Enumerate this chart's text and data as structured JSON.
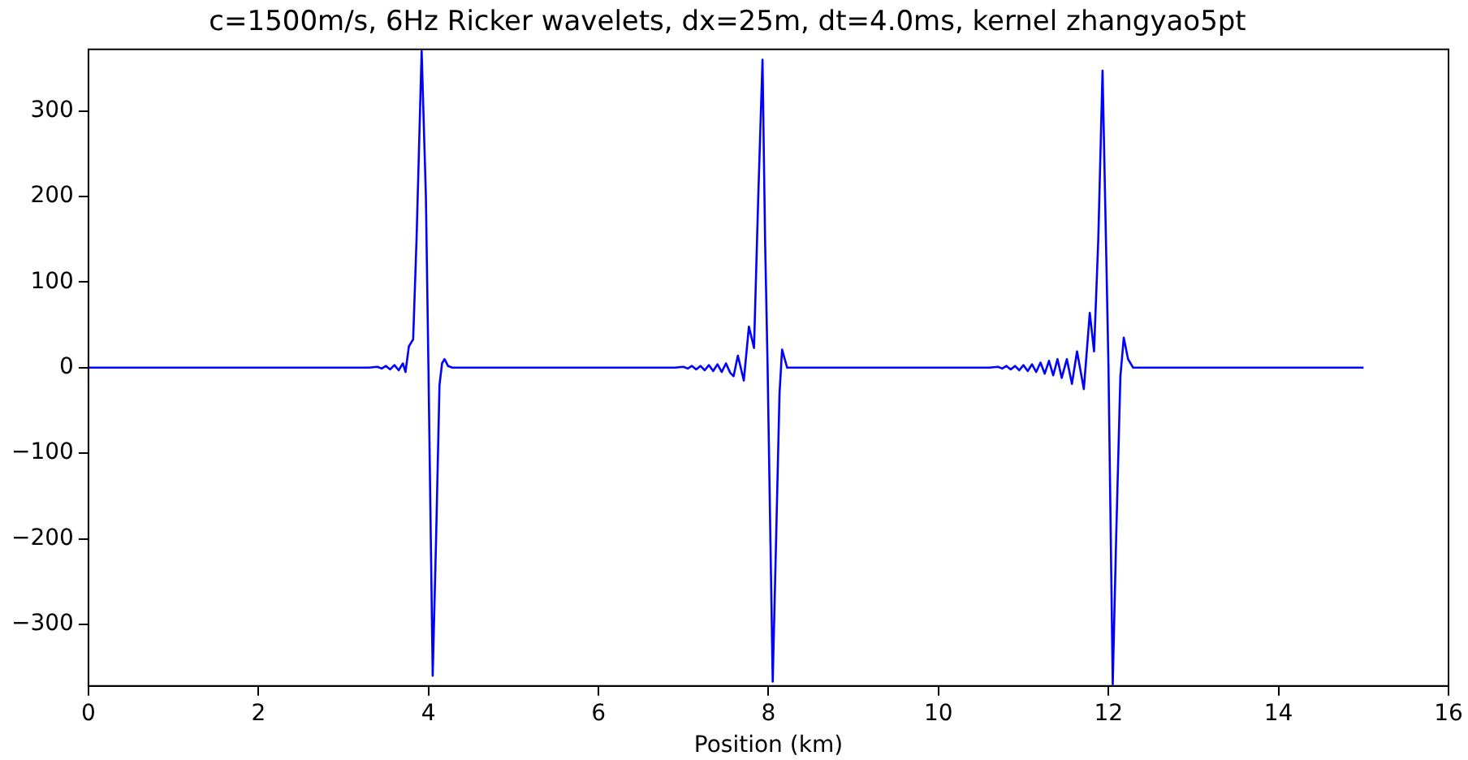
{
  "chart_data": {
    "type": "line",
    "title": "c=1500m/s, 6Hz Ricker wavelets, dx=25m, dt=4.0ms, kernel zhangyao5pt",
    "xlabel": "Position (km)",
    "xlim": [
      0,
      16
    ],
    "xticks": [
      0,
      2,
      4,
      6,
      8,
      10,
      12,
      14,
      16
    ],
    "ylim": [
      -372,
      372
    ],
    "yticks": [
      -300,
      -200,
      -100,
      0,
      100,
      200,
      300
    ],
    "grid": false,
    "legend": false,
    "marker": "none",
    "line_style": "solid",
    "series": [
      {
        "color": "#0000ff",
        "x": [
          0,
          3.3,
          3.4,
          3.45,
          3.5,
          3.55,
          3.6,
          3.65,
          3.7,
          3.73,
          3.77,
          3.82,
          3.86,
          3.92,
          3.97,
          4.0,
          4.05,
          4.09,
          4.13,
          4.16,
          4.19,
          4.23,
          4.28,
          6.9,
          7.0,
          7.05,
          7.1,
          7.15,
          7.2,
          7.25,
          7.3,
          7.35,
          7.4,
          7.45,
          7.5,
          7.55,
          7.59,
          7.64,
          7.71,
          7.77,
          7.83,
          7.88,
          7.93,
          7.96,
          7.99,
          8.05,
          8.09,
          8.13,
          8.16,
          8.22,
          8.27,
          10.6,
          10.7,
          10.75,
          10.8,
          10.85,
          10.9,
          10.95,
          11.0,
          11.05,
          11.1,
          11.15,
          11.2,
          11.25,
          11.3,
          11.35,
          11.4,
          11.45,
          11.51,
          11.57,
          11.63,
          11.71,
          11.78,
          11.83,
          11.88,
          11.93,
          11.97,
          12.0,
          12.05,
          12.09,
          12.14,
          12.18,
          12.23,
          12.29,
          15
        ],
        "values": [
          0,
          0,
          1,
          -1,
          2,
          -2,
          3,
          -3,
          5,
          -5,
          25,
          33,
          150,
          370,
          200,
          0,
          -360,
          -200,
          -20,
          5,
          10,
          2,
          0,
          0,
          1,
          -1,
          2,
          -2,
          2,
          -3,
          3,
          -4,
          4,
          -5,
          5,
          -6,
          -10,
          14,
          -15,
          48,
          23,
          200,
          360,
          150,
          0,
          -367,
          -200,
          -30,
          21,
          0,
          0,
          0,
          1,
          -1,
          2,
          -2,
          2,
          -3,
          3,
          -4,
          4,
          -5,
          6,
          -7,
          8,
          -9,
          10,
          -12,
          10,
          -19,
          19,
          -25,
          64,
          19,
          150,
          347,
          150,
          0,
          -370,
          -200,
          -10,
          35,
          10,
          0,
          0
        ]
      }
    ]
  }
}
